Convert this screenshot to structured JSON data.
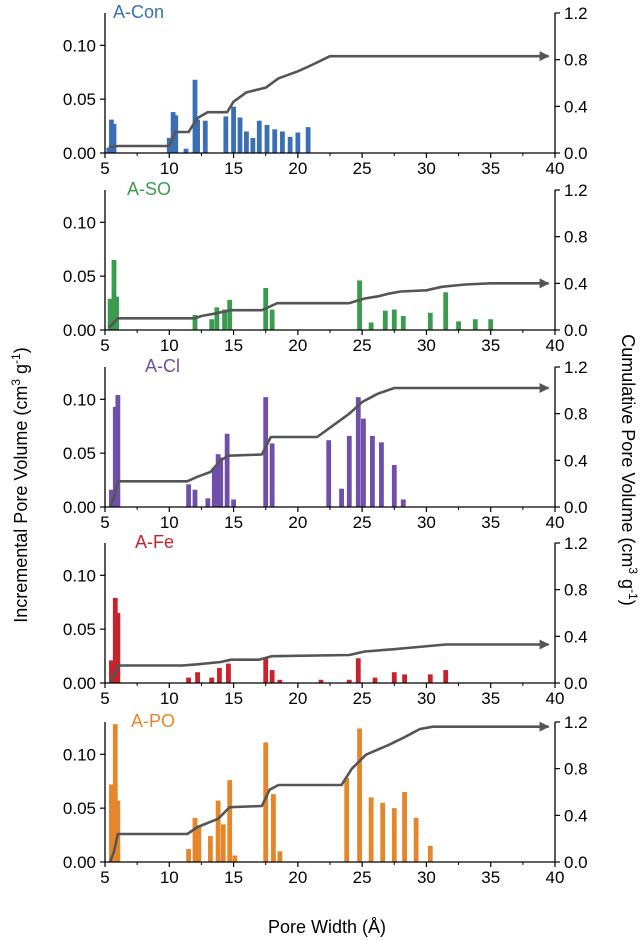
{
  "figure": {
    "xlabel_main": "Pore Width (Å)",
    "ylabel_left_main": "Incremental Pore Volume (cm",
    "ylabel_left_sup": "3",
    "ylabel_left_mid": " g",
    "ylabel_left_sup2": "-1",
    "ylabel_left_end": ")",
    "ylabel_right_main": "Cumulative Pore Volume (cm",
    "ylabel_right_sup": "3",
    "ylabel_right_mid": " g",
    "ylabel_right_sup2": "-1",
    "ylabel_right_end": ")",
    "line_color": "#555555"
  },
  "chart_data": [
    {
      "type": "bar",
      "title": "A-Con",
      "color": "#3a6fb5",
      "xlim": [
        5,
        40
      ],
      "ylim_left": [
        0,
        0.13
      ],
      "ylim_right": [
        0,
        1.2
      ],
      "x_ticks": [
        "5",
        "10",
        "15",
        "20",
        "25",
        "30",
        "35",
        "40"
      ],
      "y_left_ticks": [
        "0.00",
        "0.05",
        "0.10"
      ],
      "y_right_ticks": [
        "0.0",
        "0.4",
        "0.8",
        "1.2"
      ],
      "bars": [
        [
          5.3,
          0.005
        ],
        [
          5.5,
          0.031
        ],
        [
          5.7,
          0.027
        ],
        [
          10.0,
          0.014
        ],
        [
          10.3,
          0.038
        ],
        [
          10.5,
          0.035
        ],
        [
          11.3,
          0.004
        ],
        [
          12.0,
          0.068
        ],
        [
          12.2,
          0.031
        ],
        [
          12.8,
          0.03
        ],
        [
          14.4,
          0.034
        ],
        [
          15.0,
          0.043
        ],
        [
          15.5,
          0.033
        ],
        [
          16.0,
          0.02
        ],
        [
          16.5,
          0.014
        ],
        [
          17.0,
          0.03
        ],
        [
          17.6,
          0.026
        ],
        [
          18.2,
          0.022
        ],
        [
          18.8,
          0.02
        ],
        [
          19.4,
          0.015
        ],
        [
          20.0,
          0.019
        ],
        [
          20.8,
          0.024
        ]
      ],
      "cumulative": [
        [
          5.3,
          0.05
        ],
        [
          6.0,
          0.06
        ],
        [
          10.0,
          0.06
        ],
        [
          10.5,
          0.18
        ],
        [
          11.5,
          0.18
        ],
        [
          12.2,
          0.3
        ],
        [
          13.0,
          0.35
        ],
        [
          14.5,
          0.35
        ],
        [
          15.0,
          0.44
        ],
        [
          16.0,
          0.52
        ],
        [
          17.5,
          0.56
        ],
        [
          18.5,
          0.64
        ],
        [
          20.0,
          0.7
        ],
        [
          21.0,
          0.75
        ],
        [
          22.5,
          0.83
        ],
        [
          39.5,
          0.83
        ]
      ]
    },
    {
      "type": "bar",
      "title": "A-SO",
      "color": "#3b9b4f",
      "xlim": [
        5,
        40
      ],
      "ylim_left": [
        0,
        0.13
      ],
      "ylim_right": [
        0,
        1.2
      ],
      "x_ticks": [
        "5",
        "10",
        "15",
        "20",
        "25",
        "30",
        "35",
        "40"
      ],
      "y_left_ticks": [
        "0.00",
        "0.05",
        "0.10"
      ],
      "y_right_ticks": [
        "0.0",
        "0.4",
        "0.8",
        "1.2"
      ],
      "bars": [
        [
          5.4,
          0.029
        ],
        [
          5.7,
          0.065
        ],
        [
          5.9,
          0.031
        ],
        [
          12.0,
          0.014
        ],
        [
          13.3,
          0.01
        ],
        [
          13.7,
          0.021
        ],
        [
          14.3,
          0.019
        ],
        [
          14.7,
          0.028
        ],
        [
          17.5,
          0.039
        ],
        [
          18.0,
          0.019
        ],
        [
          24.8,
          0.046
        ],
        [
          25.7,
          0.007
        ],
        [
          26.8,
          0.018
        ],
        [
          27.5,
          0.019
        ],
        [
          28.2,
          0.013
        ],
        [
          30.3,
          0.016
        ],
        [
          31.5,
          0.035
        ],
        [
          32.5,
          0.008
        ],
        [
          33.8,
          0.01
        ],
        [
          35.0,
          0.01
        ]
      ],
      "cumulative": [
        [
          5.3,
          0.02
        ],
        [
          6.0,
          0.1
        ],
        [
          12.0,
          0.1
        ],
        [
          12.5,
          0.12
        ],
        [
          13.5,
          0.14
        ],
        [
          14.8,
          0.17
        ],
        [
          17.2,
          0.17
        ],
        [
          17.8,
          0.2
        ],
        [
          18.4,
          0.23
        ],
        [
          24.0,
          0.23
        ],
        [
          25.2,
          0.27
        ],
        [
          26.3,
          0.29
        ],
        [
          27.0,
          0.31
        ],
        [
          28.0,
          0.33
        ],
        [
          30.0,
          0.34
        ],
        [
          31.2,
          0.37
        ],
        [
          33.0,
          0.39
        ],
        [
          35.0,
          0.4
        ],
        [
          39.5,
          0.4
        ]
      ]
    },
    {
      "type": "bar",
      "title": "A-Cl",
      "color": "#6f4fa9",
      "xlim": [
        5,
        40
      ],
      "ylim_left": [
        0,
        0.13
      ],
      "ylim_right": [
        0,
        1.2
      ],
      "x_ticks": [
        "5",
        "10",
        "15",
        "20",
        "25",
        "30",
        "35",
        "40"
      ],
      "y_left_ticks": [
        "0.00",
        "0.05",
        "0.10"
      ],
      "y_right_ticks": [
        "0.0",
        "0.4",
        "0.8",
        "1.2"
      ],
      "bars": [
        [
          5.5,
          0.016
        ],
        [
          5.8,
          0.093
        ],
        [
          6.0,
          0.104
        ],
        [
          11.5,
          0.021
        ],
        [
          12.0,
          0.016
        ],
        [
          13.0,
          0.008
        ],
        [
          13.5,
          0.036
        ],
        [
          13.8,
          0.049
        ],
        [
          14.0,
          0.046
        ],
        [
          14.5,
          0.068
        ],
        [
          15.0,
          0.007
        ],
        [
          17.5,
          0.102
        ],
        [
          18.0,
          0.059
        ],
        [
          22.4,
          0.062
        ],
        [
          23.4,
          0.017
        ],
        [
          24.0,
          0.066
        ],
        [
          24.7,
          0.102
        ],
        [
          25.1,
          0.082
        ],
        [
          25.8,
          0.066
        ],
        [
          26.5,
          0.06
        ],
        [
          27.5,
          0.039
        ],
        [
          28.2,
          0.007
        ]
      ],
      "cumulative": [
        [
          5.4,
          0.0
        ],
        [
          5.7,
          0.08
        ],
        [
          6.0,
          0.22
        ],
        [
          11.4,
          0.22
        ],
        [
          12.2,
          0.26
        ],
        [
          13.2,
          0.3
        ],
        [
          14.0,
          0.4
        ],
        [
          14.6,
          0.44
        ],
        [
          17.2,
          0.45
        ],
        [
          17.9,
          0.6
        ],
        [
          21.5,
          0.6
        ],
        [
          22.5,
          0.68
        ],
        [
          24.0,
          0.8
        ],
        [
          25.0,
          0.9
        ],
        [
          26.2,
          0.97
        ],
        [
          27.5,
          1.02
        ],
        [
          39.5,
          1.02
        ]
      ]
    },
    {
      "type": "bar",
      "title": "A-Fe",
      "color": "#c8232c",
      "xlim": [
        5,
        40
      ],
      "ylim_left": [
        0,
        0.13
      ],
      "ylim_right": [
        0,
        1.2
      ],
      "x_ticks": [
        "5",
        "10",
        "15",
        "20",
        "25",
        "30",
        "35",
        "40"
      ],
      "y_left_ticks": [
        "0.00",
        "0.05",
        "0.10"
      ],
      "y_right_ticks": [
        "0.0",
        "0.4",
        "0.8",
        "1.2"
      ],
      "bars": [
        [
          5.5,
          0.021
        ],
        [
          5.8,
          0.079
        ],
        [
          6.0,
          0.065
        ],
        [
          11.5,
          0.005
        ],
        [
          12.2,
          0.01
        ],
        [
          13.3,
          0.005
        ],
        [
          13.9,
          0.014
        ],
        [
          14.6,
          0.018
        ],
        [
          17.5,
          0.023
        ],
        [
          18.0,
          0.012
        ],
        [
          18.6,
          0.003
        ],
        [
          21.8,
          0.003
        ],
        [
          24.0,
          0.003
        ],
        [
          24.7,
          0.023
        ],
        [
          26.0,
          0.005
        ],
        [
          27.5,
          0.01
        ],
        [
          28.3,
          0.008
        ],
        [
          30.3,
          0.008
        ],
        [
          31.5,
          0.012
        ]
      ],
      "cumulative": [
        [
          5.4,
          0.0
        ],
        [
          5.8,
          0.09
        ],
        [
          6.0,
          0.15
        ],
        [
          11.0,
          0.15
        ],
        [
          12.2,
          0.16
        ],
        [
          14.0,
          0.18
        ],
        [
          14.8,
          0.2
        ],
        [
          17.0,
          0.2
        ],
        [
          18.0,
          0.23
        ],
        [
          24.0,
          0.24
        ],
        [
          25.2,
          0.27
        ],
        [
          27.5,
          0.29
        ],
        [
          28.5,
          0.3
        ],
        [
          31.5,
          0.33
        ],
        [
          39.5,
          0.33
        ]
      ]
    },
    {
      "type": "bar",
      "title": "A-PO",
      "color": "#e5862c",
      "xlim": [
        5,
        40
      ],
      "ylim_left": [
        0,
        0.13
      ],
      "ylim_right": [
        0,
        1.2
      ],
      "x_ticks": [
        "5",
        "10",
        "15",
        "20",
        "25",
        "30",
        "35",
        "40"
      ],
      "y_left_ticks": [
        "0.00",
        "0.05",
        "0.10"
      ],
      "y_right_ticks": [
        "0.0",
        "0.4",
        "0.8",
        "1.2"
      ],
      "bars": [
        [
          5.5,
          0.072
        ],
        [
          5.8,
          0.128
        ],
        [
          6.0,
          0.057
        ],
        [
          11.5,
          0.012
        ],
        [
          12.0,
          0.041
        ],
        [
          12.3,
          0.034
        ],
        [
          13.2,
          0.024
        ],
        [
          13.8,
          0.057
        ],
        [
          14.2,
          0.035
        ],
        [
          14.7,
          0.076
        ],
        [
          15.1,
          0.006
        ],
        [
          17.5,
          0.111
        ],
        [
          18.1,
          0.063
        ],
        [
          18.6,
          0.01
        ],
        [
          23.8,
          0.078
        ],
        [
          24.8,
          0.124
        ],
        [
          25.7,
          0.06
        ],
        [
          26.6,
          0.055
        ],
        [
          27.5,
          0.05
        ],
        [
          28.3,
          0.065
        ],
        [
          29.2,
          0.041
        ],
        [
          30.3,
          0.015
        ]
      ],
      "cumulative": [
        [
          5.4,
          0.0
        ],
        [
          5.7,
          0.09
        ],
        [
          6.0,
          0.24
        ],
        [
          11.4,
          0.24
        ],
        [
          12.2,
          0.3
        ],
        [
          13.8,
          0.37
        ],
        [
          14.7,
          0.47
        ],
        [
          17.2,
          0.48
        ],
        [
          17.8,
          0.62
        ],
        [
          18.5,
          0.66
        ],
        [
          23.4,
          0.66
        ],
        [
          24.2,
          0.8
        ],
        [
          25.3,
          0.92
        ],
        [
          27.0,
          1.0
        ],
        [
          28.3,
          1.07
        ],
        [
          29.5,
          1.14
        ],
        [
          30.5,
          1.16
        ],
        [
          39.5,
          1.16
        ]
      ]
    }
  ]
}
